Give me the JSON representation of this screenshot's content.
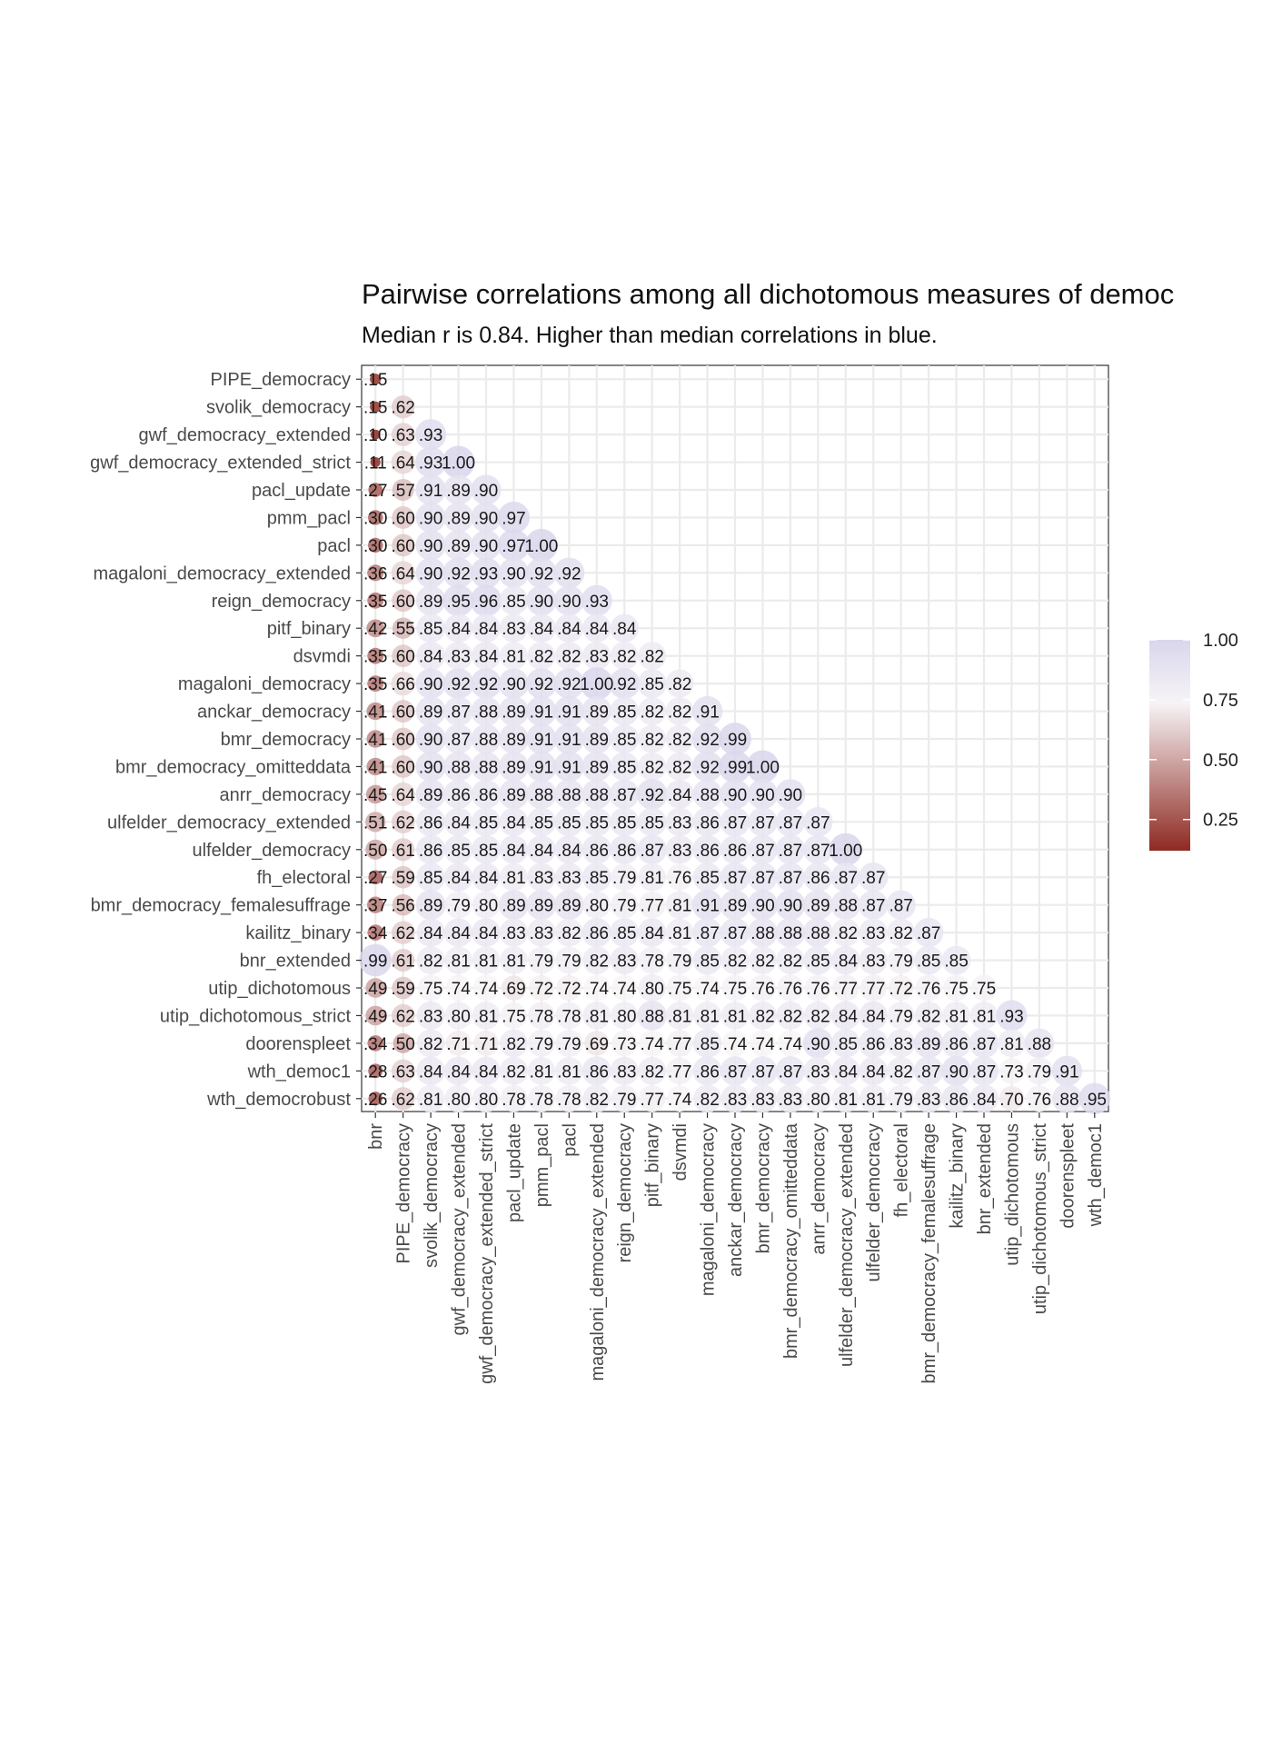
{
  "chart_data": {
    "type": "heatmap",
    "title": "Pairwise correlations among all dichotomous measures of democ",
    "subtitle": "Median r is 0.84. Higher than median correlations in blue.",
    "median_r": 0.84,
    "x_labels": [
      "bnr",
      "PIPE_democracy",
      "svolik_democracy",
      "gwf_democracy_extended",
      "gwf_democracy_extended_strict",
      "pacl_update",
      "pmm_pacl",
      "pacl",
      "magaloni_democracy_extended",
      "reign_democracy",
      "pitf_binary",
      "dsvmdi",
      "magaloni_democracy",
      "anckar_democracy",
      "bmr_democracy",
      "bmr_democracy_omitteddata",
      "anrr_democracy",
      "ulfelder_democracy_extended",
      "ulfelder_democracy",
      "fh_electoral",
      "bmr_democracy_femalesuffrage",
      "kailitz_binary",
      "bnr_extended",
      "utip_dichotomous",
      "utip_dichotomous_strict",
      "doorenspleet",
      "wth_democ1"
    ],
    "y_labels": [
      "PIPE_democracy",
      "svolik_democracy",
      "gwf_democracy_extended",
      "gwf_democracy_extended_strict",
      "pacl_update",
      "pmm_pacl",
      "pacl",
      "magaloni_democracy_extended",
      "reign_democracy",
      "pitf_binary",
      "dsvmdi",
      "magaloni_democracy",
      "anckar_democracy",
      "bmr_democracy",
      "bmr_democracy_omitteddata",
      "anrr_democracy",
      "ulfelder_democracy_extended",
      "ulfelder_democracy",
      "fh_electoral",
      "bmr_democracy_femalesuffrage",
      "kailitz_binary",
      "bnr_extended",
      "utip_dichotomous",
      "utip_dichotomous_strict",
      "doorenspleet",
      "wth_democ1",
      "wth_democrobust"
    ],
    "values": [
      [
        0.15
      ],
      [
        0.15,
        0.62
      ],
      [
        0.1,
        0.63,
        0.93
      ],
      [
        0.11,
        0.64,
        0.93,
        1.0
      ],
      [
        0.27,
        0.57,
        0.91,
        0.89,
        0.9
      ],
      [
        0.3,
        0.6,
        0.9,
        0.89,
        0.9,
        0.97
      ],
      [
        0.3,
        0.6,
        0.9,
        0.89,
        0.9,
        0.97,
        1.0
      ],
      [
        0.36,
        0.64,
        0.9,
        0.92,
        0.93,
        0.9,
        0.92,
        0.92
      ],
      [
        0.35,
        0.6,
        0.89,
        0.95,
        0.96,
        0.85,
        0.9,
        0.9,
        0.93
      ],
      [
        0.42,
        0.55,
        0.85,
        0.84,
        0.84,
        0.83,
        0.84,
        0.84,
        0.84,
        0.84
      ],
      [
        0.35,
        0.6,
        0.84,
        0.83,
        0.84,
        0.81,
        0.82,
        0.82,
        0.83,
        0.82,
        0.82
      ],
      [
        0.35,
        0.66,
        0.9,
        0.92,
        0.92,
        0.9,
        0.92,
        0.92,
        1.0,
        0.92,
        0.85,
        0.82
      ],
      [
        0.41,
        0.6,
        0.89,
        0.87,
        0.88,
        0.89,
        0.91,
        0.91,
        0.89,
        0.85,
        0.82,
        0.82,
        0.91
      ],
      [
        0.41,
        0.6,
        0.9,
        0.87,
        0.88,
        0.89,
        0.91,
        0.91,
        0.89,
        0.85,
        0.82,
        0.82,
        0.92,
        0.99
      ],
      [
        0.41,
        0.6,
        0.9,
        0.88,
        0.88,
        0.89,
        0.91,
        0.91,
        0.89,
        0.85,
        0.82,
        0.82,
        0.92,
        0.99,
        1.0
      ],
      [
        0.45,
        0.64,
        0.89,
        0.86,
        0.86,
        0.89,
        0.88,
        0.88,
        0.88,
        0.87,
        0.92,
        0.84,
        0.88,
        0.9,
        0.9,
        0.9
      ],
      [
        0.51,
        0.62,
        0.86,
        0.84,
        0.85,
        0.84,
        0.85,
        0.85,
        0.85,
        0.85,
        0.85,
        0.83,
        0.86,
        0.87,
        0.87,
        0.87,
        0.87
      ],
      [
        0.5,
        0.61,
        0.86,
        0.85,
        0.85,
        0.84,
        0.84,
        0.84,
        0.86,
        0.86,
        0.87,
        0.83,
        0.86,
        0.86,
        0.87,
        0.87,
        0.87,
        1.0
      ],
      [
        0.27,
        0.59,
        0.85,
        0.84,
        0.84,
        0.81,
        0.83,
        0.83,
        0.85,
        0.79,
        0.81,
        0.76,
        0.85,
        0.87,
        0.87,
        0.87,
        0.86,
        0.87,
        0.87
      ],
      [
        0.37,
        0.56,
        0.89,
        0.79,
        0.8,
        0.89,
        0.89,
        0.89,
        0.8,
        0.79,
        0.77,
        0.81,
        0.91,
        0.89,
        0.9,
        0.9,
        0.89,
        0.88,
        0.87,
        0.87
      ],
      [
        0.34,
        0.62,
        0.84,
        0.84,
        0.84,
        0.83,
        0.83,
        0.82,
        0.86,
        0.85,
        0.84,
        0.81,
        0.87,
        0.87,
        0.88,
        0.88,
        0.88,
        0.82,
        0.83,
        0.82,
        0.87
      ],
      [
        0.99,
        0.61,
        0.82,
        0.81,
        0.81,
        0.81,
        0.79,
        0.79,
        0.82,
        0.83,
        0.78,
        0.79,
        0.85,
        0.82,
        0.82,
        0.82,
        0.85,
        0.84,
        0.83,
        0.79,
        0.85,
        0.85
      ],
      [
        0.49,
        0.59,
        0.75,
        0.74,
        0.74,
        0.69,
        0.72,
        0.72,
        0.74,
        0.74,
        0.8,
        0.75,
        0.74,
        0.75,
        0.76,
        0.76,
        0.76,
        0.77,
        0.77,
        0.72,
        0.76,
        0.75,
        0.75
      ],
      [
        0.49,
        0.62,
        0.83,
        0.8,
        0.81,
        0.75,
        0.78,
        0.78,
        0.81,
        0.8,
        0.88,
        0.81,
        0.81,
        0.81,
        0.82,
        0.82,
        0.82,
        0.84,
        0.84,
        0.79,
        0.82,
        0.81,
        0.81,
        0.93
      ],
      [
        0.34,
        0.5,
        0.82,
        0.71,
        0.71,
        0.82,
        0.79,
        0.79,
        0.69,
        0.73,
        0.74,
        0.77,
        0.85,
        0.74,
        0.74,
        0.74,
        0.9,
        0.85,
        0.86,
        0.83,
        0.89,
        0.86,
        0.87,
        0.81,
        0.88
      ],
      [
        0.28,
        0.63,
        0.84,
        0.84,
        0.84,
        0.82,
        0.81,
        0.81,
        0.86,
        0.83,
        0.82,
        0.77,
        0.86,
        0.87,
        0.87,
        0.87,
        0.83,
        0.84,
        0.84,
        0.82,
        0.87,
        0.9,
        0.87,
        0.73,
        0.79,
        0.91
      ],
      [
        0.26,
        0.62,
        0.81,
        0.8,
        0.8,
        0.78,
        0.78,
        0.78,
        0.82,
        0.79,
        0.77,
        0.74,
        0.82,
        0.83,
        0.83,
        0.83,
        0.8,
        0.81,
        0.81,
        0.79,
        0.83,
        0.86,
        0.84,
        0.7,
        0.76,
        0.88,
        0.95
      ]
    ],
    "color_scale": {
      "low_color": "#8e2a22",
      "mid_color": "#f7f4f6",
      "high_color": "#d9d6ec",
      "limits": [
        0.12,
        1.0
      ],
      "ticks": [
        "0.25",
        "0.50",
        "0.75",
        "1.00"
      ],
      "tick_values": [
        0.25,
        0.5,
        0.75,
        1.0
      ]
    },
    "grid": true,
    "legend_position": "right"
  }
}
